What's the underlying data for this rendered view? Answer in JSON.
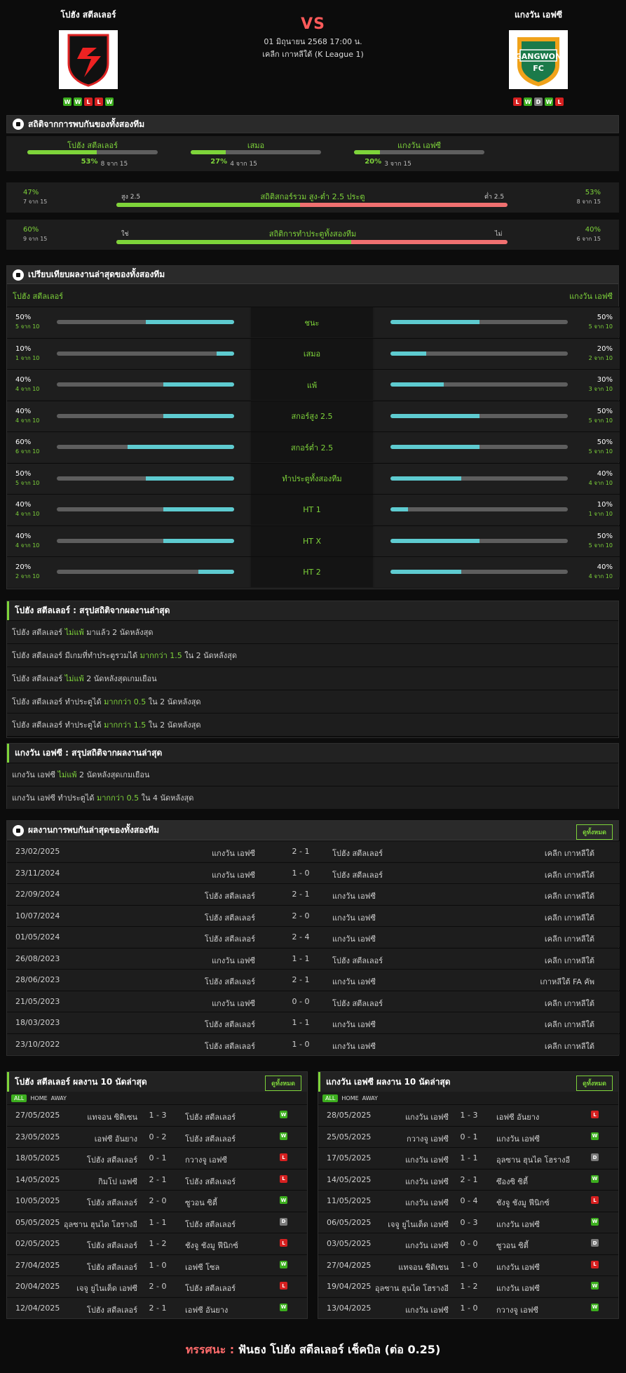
{
  "home": {
    "name": "โปฮัง สตีลเลอร์",
    "form": [
      "W",
      "W",
      "L",
      "L",
      "W"
    ]
  },
  "away": {
    "name": "แกงวัน เอฟซี",
    "form": [
      "L",
      "W",
      "D",
      "W",
      "L"
    ]
  },
  "match": {
    "vs": "VS",
    "date": "01 มิถุนายน 2568 17:00 น.",
    "league": "เคลีก เกาหลีใต้ (K League 1)"
  },
  "h2h_stats": {
    "title": "สถิติจากการพบกันของทั้งสองทีม",
    "items": [
      {
        "label": "โปฮัง สตีลเลอร์",
        "pct": "53%",
        "of": "8 จาก 15",
        "value": 53
      },
      {
        "label": "เสมอ",
        "pct": "27%",
        "of": "4 จาก 15",
        "value": 27
      },
      {
        "label": "แกงวัน เอฟซี",
        "pct": "20%",
        "of": "3 จาก 15",
        "value": 20
      }
    ],
    "ou": {
      "title": "สถิติสกอร์รวม สูง-ต่ำ 2.5 ประตู",
      "left_pct": "47%",
      "left_of": "7 จาก 15",
      "right_pct": "53%",
      "right_of": "8 จาก 15",
      "left_tag": "สูง 2.5",
      "right_tag": "ต่ำ 2.5",
      "value": 47
    },
    "btts": {
      "title": "สถิติการทำประตูทั้งสองทีม",
      "left_pct": "60%",
      "left_of": "9 จาก 15",
      "right_pct": "40%",
      "right_of": "6 จาก 15",
      "left_tag": "ใช่",
      "right_tag": "ไม่",
      "value": 60
    }
  },
  "compare": {
    "title": "เปรียบเทียบผลงานล่าสุดของทั้งสองทีม",
    "home_label": "โปฮัง สตีลเลอร์",
    "away_label": "แกงวัน เอฟซี",
    "rows": [
      {
        "label": "ชนะ",
        "h": "50%",
        "hs": "5 จาก 10",
        "hv": 50,
        "a": "50%",
        "as": "5 จาก 10",
        "av": 50
      },
      {
        "label": "เสมอ",
        "h": "10%",
        "hs": "1 จาก 10",
        "hv": 10,
        "a": "20%",
        "as": "2 จาก 10",
        "av": 20
      },
      {
        "label": "แพ้",
        "h": "40%",
        "hs": "4 จาก 10",
        "hv": 40,
        "a": "30%",
        "as": "3 จาก 10",
        "av": 30
      },
      {
        "label": "สกอร์สูง 2.5",
        "h": "40%",
        "hs": "4 จาก 10",
        "hv": 40,
        "a": "50%",
        "as": "5 จาก 10",
        "av": 50
      },
      {
        "label": "สกอร์ต่ำ 2.5",
        "h": "60%",
        "hs": "6 จาก 10",
        "hv": 60,
        "a": "50%",
        "as": "5 จาก 10",
        "av": 50
      },
      {
        "label": "ทำประตูทั้งสองทีม",
        "h": "50%",
        "hs": "5 จาก 10",
        "hv": 50,
        "a": "40%",
        "as": "4 จาก 10",
        "av": 40
      },
      {
        "label": "HT 1",
        "h": "40%",
        "hs": "4 จาก 10",
        "hv": 40,
        "a": "10%",
        "as": "1 จาก 10",
        "av": 10
      },
      {
        "label": "HT X",
        "h": "40%",
        "hs": "4 จาก 10",
        "hv": 40,
        "a": "50%",
        "as": "5 จาก 10",
        "av": 50
      },
      {
        "label": "HT 2",
        "h": "20%",
        "hs": "2 จาก 10",
        "hv": 20,
        "a": "40%",
        "as": "4 จาก 10",
        "av": 40
      }
    ]
  },
  "home_summary": {
    "title": "โปฮัง สตีลเลอร์ : สรุปสถิติจากผลงานล่าสุด",
    "lines": [
      [
        "โปฮัง สตีลเลอร์ ",
        "ไม่แพ้",
        " มาแล้ว 2 นัดหลังสุด"
      ],
      [
        "โปฮัง สตีลเลอร์ มีเกมที่ทำประตูรวมได้ ",
        "มากกว่า 1.5",
        " ใน 2 นัดหลังสุด"
      ],
      [
        "โปฮัง สตีลเลอร์ ",
        "ไม่แพ้",
        " 2 นัดหลังสุดเกมเยือน"
      ],
      [
        "โปฮัง สตีลเลอร์ ทำประตูได้ ",
        "มากกว่า 0.5",
        " ใน 2 นัดหลังสุด"
      ],
      [
        "โปฮัง สตีลเลอร์ ทำประตูได้ ",
        "มากกว่า 1.5",
        " ใน 2 นัดหลังสุด"
      ]
    ]
  },
  "away_summary": {
    "title": "แกงวัน เอฟซี : สรุปสถิติจากผลงานล่าสุด",
    "lines": [
      [
        "แกงวัน เอฟซี ",
        "ไม่แพ้",
        " 2 นัดหลังสุดเกมเยือน"
      ],
      [
        "แกงวัน เอฟซี ทำประตูได้ ",
        "มากกว่า 0.5",
        " ใน 4 นัดหลังสุด"
      ]
    ]
  },
  "h2h_results": {
    "title": "ผลงานการพบกันล่าสุดของทั้งสองทีม",
    "button": "ดูทั้งหมด",
    "rows": [
      [
        "23/02/2025",
        "แกงวัน เอฟซี",
        "2 - 1",
        "โปฮัง สตีลเลอร์",
        "เคลีก เกาหลีใต้"
      ],
      [
        "23/11/2024",
        "แกงวัน เอฟซี",
        "1 - 0",
        "โปฮัง สตีลเลอร์",
        "เคลีก เกาหลีใต้"
      ],
      [
        "22/09/2024",
        "โปฮัง สตีลเลอร์",
        "2 - 1",
        "แกงวัน เอฟซี",
        "เคลีก เกาหลีใต้"
      ],
      [
        "10/07/2024",
        "โปฮัง สตีลเลอร์",
        "2 - 0",
        "แกงวัน เอฟซี",
        "เคลีก เกาหลีใต้"
      ],
      [
        "01/05/2024",
        "โปฮัง สตีลเลอร์",
        "2 - 4",
        "แกงวัน เอฟซี",
        "เคลีก เกาหลีใต้"
      ],
      [
        "26/08/2023",
        "แกงวัน เอฟซี",
        "1 - 1",
        "โปฮัง สตีลเลอร์",
        "เคลีก เกาหลีใต้"
      ],
      [
        "28/06/2023",
        "โปฮัง สตีลเลอร์",
        "2 - 1",
        "แกงวัน เอฟซี",
        "เกาหลีใต้ FA คัพ"
      ],
      [
        "21/05/2023",
        "แกงวัน เอฟซี",
        "0 - 0",
        "โปฮัง สตีลเลอร์",
        "เคลีก เกาหลีใต้"
      ],
      [
        "18/03/2023",
        "โปฮัง สตีลเลอร์",
        "1 - 1",
        "แกงวัน เอฟซี",
        "เคลีก เกาหลีใต้"
      ],
      [
        "23/10/2022",
        "โปฮัง สตีลเลอร์",
        "1 - 0",
        "แกงวัน เอฟซี",
        "เคลีก เกาหลีใต้"
      ]
    ]
  },
  "home_last": {
    "title": "โปฮัง สตีลเลอร์ ผลงาน 10 นัดล่าสุด",
    "button": "ดูทั้งหมด",
    "tabs": [
      "ALL",
      "HOME",
      "AWAY"
    ],
    "rows": [
      [
        "27/05/2025",
        "แทจอน ซิติเซน",
        "1 - 3",
        "โปฮัง สตีลเลอร์",
        "W"
      ],
      [
        "23/05/2025",
        "เอฟซี อันยาง",
        "0 - 2",
        "โปฮัง สตีลเลอร์",
        "W"
      ],
      [
        "18/05/2025",
        "โปฮัง สตีลเลอร์",
        "0 - 1",
        "กวางจู เอฟซี",
        "L"
      ],
      [
        "14/05/2025",
        "กิมโป เอฟซี",
        "2 - 1",
        "โปฮัง สตีลเลอร์",
        "L"
      ],
      [
        "10/05/2025",
        "โปฮัง สตีลเลอร์",
        "2 - 0",
        "ซูวอน ซิตี้",
        "W"
      ],
      [
        "05/05/2025",
        "อุลซาน ฮุนได โฮรางอี",
        "1 - 1",
        "โปฮัง สตีลเลอร์",
        "D"
      ],
      [
        "02/05/2025",
        "โปฮัง สตีลเลอร์",
        "1 - 2",
        "ชังจู ชังมู ฟีนิกซ์",
        "L"
      ],
      [
        "27/04/2025",
        "โปฮัง สตีลเลอร์",
        "1 - 0",
        "เอฟซี โซล",
        "W"
      ],
      [
        "20/04/2025",
        "เจจู ยูไนเต็ด เอฟซี",
        "2 - 0",
        "โปฮัง สตีลเลอร์",
        "L"
      ],
      [
        "12/04/2025",
        "โปฮัง สตีลเลอร์",
        "2 - 1",
        "เอฟซี อันยาง",
        "W"
      ]
    ]
  },
  "away_last": {
    "title": "แกงวัน เอฟซี ผลงาน 10 นัดล่าสุด",
    "button": "ดูทั้งหมด",
    "tabs": [
      "ALL",
      "HOME",
      "AWAY"
    ],
    "rows": [
      [
        "28/05/2025",
        "แกงวัน เอฟซี",
        "1 - 3",
        "เอฟซี อันยาง",
        "L"
      ],
      [
        "25/05/2025",
        "กวางจู เอฟซี",
        "0 - 1",
        "แกงวัน เอฟซี",
        "W"
      ],
      [
        "17/05/2025",
        "แกงวัน เอฟซี",
        "1 - 1",
        "อุลซาน ฮุนได โฮรางอี",
        "D"
      ],
      [
        "14/05/2025",
        "แกงวัน เอฟซี",
        "2 - 1",
        "ซึองซิ ซิตี้",
        "W"
      ],
      [
        "11/05/2025",
        "แกงวัน เอฟซี",
        "0 - 4",
        "ชังจู ชังมู ฟีนิกซ์",
        "L"
      ],
      [
        "06/05/2025",
        "เจจู ยูไนเต็ด เอฟซี",
        "0 - 3",
        "แกงวัน เอฟซี",
        "W"
      ],
      [
        "03/05/2025",
        "แกงวัน เอฟซี",
        "0 - 0",
        "ซูวอน ซิตี้",
        "D"
      ],
      [
        "27/04/2025",
        "แทจอน ซิติเซน",
        "1 - 0",
        "แกงวัน เอฟซี",
        "L"
      ],
      [
        "19/04/2025",
        "อุลซาน ฮุนได โฮรางอี",
        "1 - 2",
        "แกงวัน เอฟซี",
        "W"
      ],
      [
        "13/04/2025",
        "แกงวัน เอฟซี",
        "1 - 0",
        "กวางจู เอฟซี",
        "W"
      ]
    ]
  },
  "verdict": {
    "label": "ทรรศนะ :",
    "text": " ฟันธง โปฮัง สตีลเลอร์ เช็คบิล (ต่อ 0.25)"
  }
}
